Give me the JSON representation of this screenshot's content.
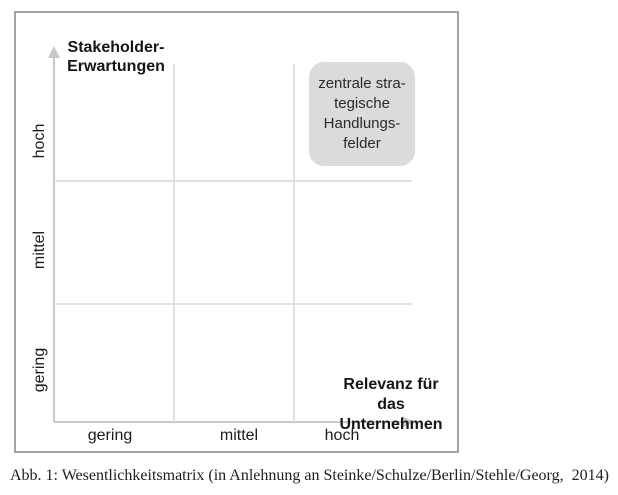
{
  "matrix": {
    "y_axis": {
      "title_lines": [
        "Stakeholder-",
        "Erwartungen"
      ],
      "ticks": [
        "hoch",
        "mittel",
        "gering"
      ]
    },
    "x_axis": {
      "title_lines": [
        "Relevanz für das",
        "Unternehmen"
      ],
      "ticks": [
        "gering",
        "mittel",
        "hoch"
      ]
    },
    "grid": {
      "rows": 3,
      "cols": 3,
      "line_color": "#e0e0e0",
      "axis_color": "#c8c8c8",
      "border_color": "#a3a3a3"
    },
    "annotation": {
      "lines": [
        "zentrale stra-",
        "tegische",
        "Handlungs-",
        "felder"
      ],
      "fill_color": "#dbdbdb",
      "position": "top-right-cell"
    }
  },
  "caption": "Abb. 1: Wesentlichkeitsmatrix (in Anlehnung an Steinke/Schulze/Berlin/Stehle/Georg,  2014)"
}
